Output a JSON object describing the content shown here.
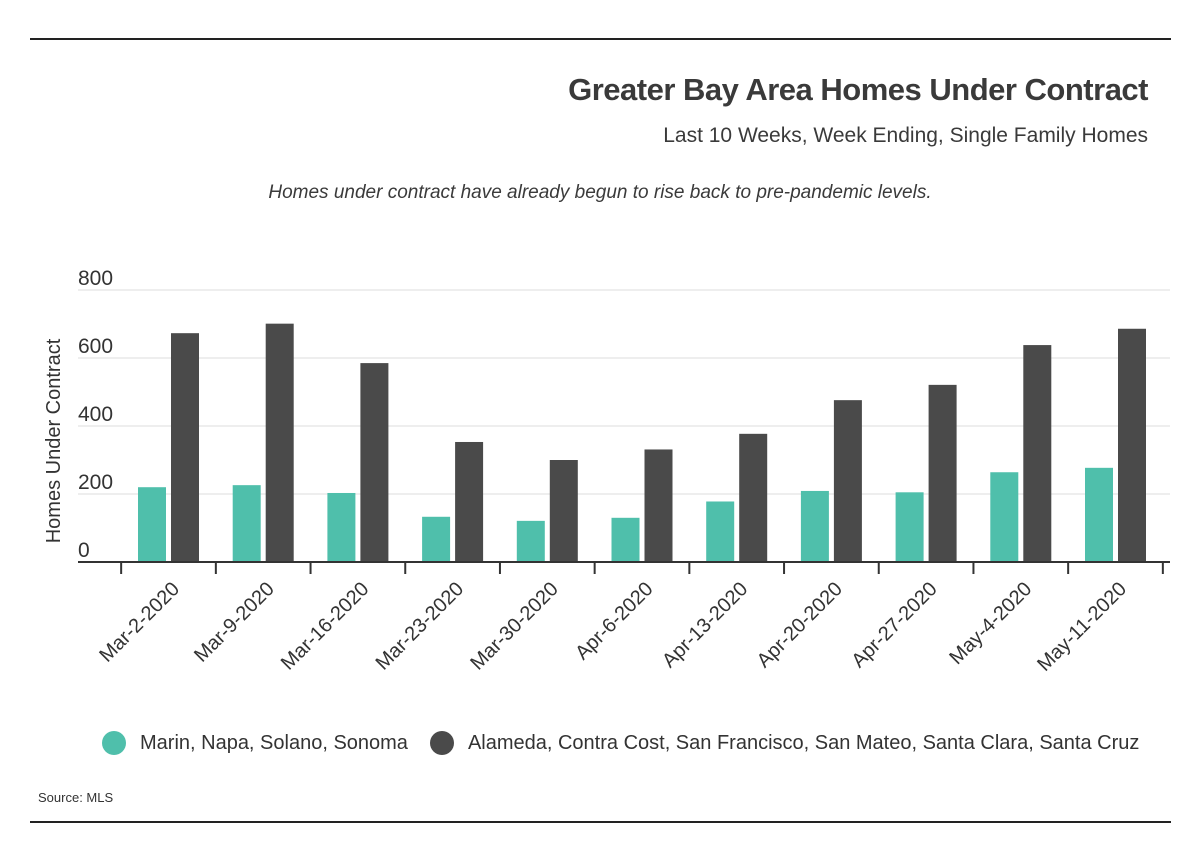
{
  "header": {
    "title": "Greater Bay Area Homes Under Contract",
    "subtitle": "Last 10 Weeks, Week Ending, Single Family Homes",
    "annotation": "Homes under contract have already begun to rise back to pre-pandemic levels."
  },
  "footer": {
    "source": "Source: MLS"
  },
  "chart_data": {
    "type": "bar",
    "title": "Greater Bay Area Homes Under Contract",
    "subtitle": "Last 10 Weeks, Week Ending, Single Family Homes",
    "xlabel": "",
    "ylabel": "Homes Under Contract",
    "ylim": [
      0,
      800
    ],
    "yticks": [
      0,
      200,
      400,
      600,
      800
    ],
    "grid": true,
    "legend_position": "bottom",
    "categories": [
      "Mar-2-2020",
      "Mar-9-2020",
      "Mar-16-2020",
      "Mar-23-2020",
      "Mar-30-2020",
      "Apr-6-2020",
      "Apr-13-2020",
      "Apr-20-2020",
      "Apr-27-2020",
      "May-4-2020",
      "May-11-2020"
    ],
    "series": [
      {
        "name": "Marin, Napa, Solano, Sonoma",
        "color": "#4fbfab",
        "values": [
          220,
          226,
          203,
          133,
          121,
          130,
          178,
          209,
          205,
          264,
          277
        ]
      },
      {
        "name": "Alameda, Contra Cost, San Francisco, San Mateo, Santa Clara, Santa Cruz",
        "color": "#4a4a4a",
        "values": [
          673,
          701,
          585,
          353,
          300,
          331,
          377,
          476,
          521,
          638,
          686
        ]
      }
    ]
  }
}
